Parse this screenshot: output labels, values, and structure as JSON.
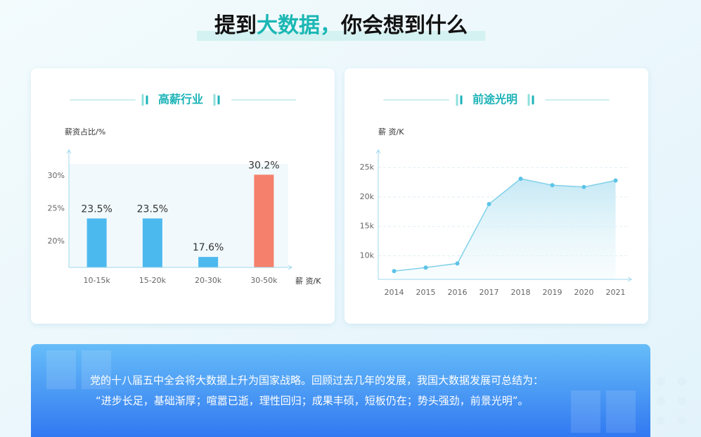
{
  "header": {
    "title": [
      "提到",
      "大数据，",
      "你会想到什么"
    ]
  },
  "chart_data": [
    {
      "type": "bar",
      "title": "高薪行业",
      "y_label": "薪资占比/%",
      "x_label": "薪 资/K",
      "categories": [
        "10-15k",
        "15-20k",
        "20-30k",
        "30-50k"
      ],
      "values": [
        23.5,
        23.5,
        17.6,
        30.2
      ],
      "value_labels": [
        "23.5%",
        "23.5%",
        "17.6%",
        "30.2%"
      ],
      "colors": [
        "#4cb9ee",
        "#4cb9ee",
        "#4cb9ee",
        "#f5806c"
      ],
      "ylim": [
        16,
        34
      ],
      "yticks": [
        {
          "value": 20,
          "label": "20%"
        },
        {
          "value": 25,
          "label": "25%"
        },
        {
          "value": 30,
          "label": "30%"
        }
      ],
      "grid": true
    },
    {
      "type": "line",
      "title": "前途光明",
      "y_label": "薪 资/K",
      "categories": [
        "2014",
        "2015",
        "2016",
        "2017",
        "2018",
        "2019",
        "2020",
        "2021"
      ],
      "values": [
        7.4,
        8.0,
        8.7,
        18.8,
        23.1,
        22.0,
        21.7,
        22.8
      ],
      "color": "#7fd0ea",
      "ylim": [
        6,
        28
      ],
      "yticks": [
        {
          "value": 10,
          "label": "10k"
        },
        {
          "value": 15,
          "label": "15k"
        },
        {
          "value": 20,
          "label": "20k"
        },
        {
          "value": 25,
          "label": "25k"
        }
      ],
      "grid": true
    }
  ],
  "quote": {
    "lines": [
      "党的十八届五中全会将大数据上升为国家战略。回顾过去几年的发展，我国大数据发展可总结为：",
      "“进步长足，基础渐厚；喧嚣已逝，理性回归；成果丰硕，短板仍在；势头强劲，前景光明”。"
    ]
  }
}
